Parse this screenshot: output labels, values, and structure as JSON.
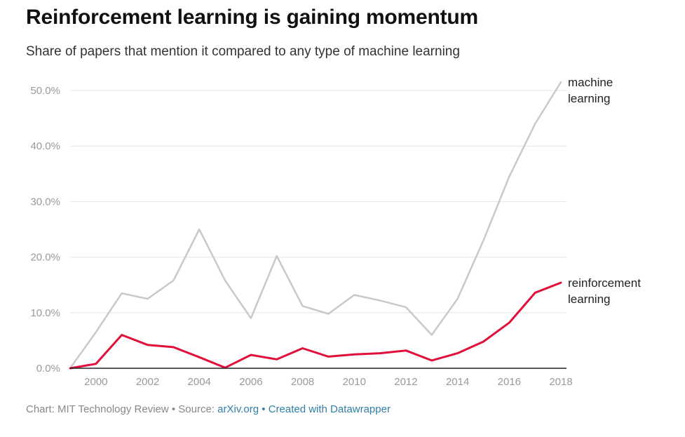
{
  "header": {
    "title": "Reinforcement learning is gaining momentum",
    "subtitle": "Share of papers that mention it compared to any type of machine learning"
  },
  "footer": {
    "chart_credit": "Chart: MIT Technology Review • Source:",
    "source_link": "arXiv.org",
    "separator": "•",
    "datawrapper_link": "Created with Datawrapper"
  },
  "colors": {
    "machine_learning": "#c9c9c9",
    "reinforcement_learning": "#e0103a",
    "grid": "#e6e6e6",
    "baseline": "#222222",
    "link": "#2f7fa6"
  },
  "chart_data": {
    "type": "line",
    "title": "Reinforcement learning is gaining momentum",
    "subtitle": "Share of papers that mention it compared to any type of machine learning",
    "xlabel": "",
    "ylabel": "",
    "xlim": [
      1999,
      2018
    ],
    "ylim": [
      0,
      50
    ],
    "y_ticks": [
      0,
      10,
      20,
      30,
      40,
      50
    ],
    "y_tick_labels": [
      "0.0%",
      "10.0%",
      "20.0%",
      "30.0%",
      "40.0%",
      "50.0%"
    ],
    "x_ticks": [
      2000,
      2002,
      2004,
      2006,
      2008,
      2010,
      2012,
      2014,
      2016,
      2018
    ],
    "x_tick_labels": [
      "2000",
      "2002",
      "2004",
      "2006",
      "2008",
      "2010",
      "2012",
      "2014",
      "2016",
      "2018"
    ],
    "grid": true,
    "legend": "direct labels at right end of lines",
    "x": [
      1999,
      2000,
      2001,
      2002,
      2003,
      2004,
      2005,
      2006,
      2007,
      2008,
      2009,
      2010,
      2011,
      2012,
      2013,
      2014,
      2015,
      2016,
      2017,
      2018
    ],
    "series": [
      {
        "name": "machine learning",
        "label_lines": [
          "machine",
          "learning"
        ],
        "color": "#c9c9c9",
        "values": [
          0,
          6.5,
          13.5,
          12.5,
          15.8,
          25,
          15.8,
          9,
          20.2,
          11.2,
          9.8,
          13.2,
          12.2,
          11,
          6,
          12.5,
          23,
          34.5,
          44,
          51.5
        ]
      },
      {
        "name": "reinforcement learning",
        "label_lines": [
          "reinforcement",
          "learning"
        ],
        "color": "#e0103a",
        "values": [
          0,
          0.8,
          6,
          4.2,
          3.8,
          2,
          0.1,
          2.4,
          1.6,
          3.6,
          2.1,
          2.5,
          2.7,
          3.2,
          1.4,
          2.7,
          4.8,
          8.2,
          13.6,
          15.4
        ]
      }
    ]
  }
}
